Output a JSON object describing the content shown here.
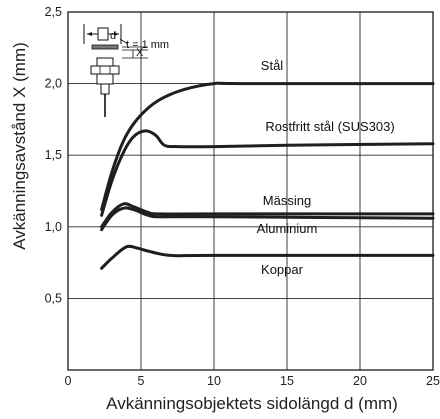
{
  "chart_data": {
    "type": "line",
    "xlabel": "Avkänningsobjektets sidolängd d (mm)",
    "ylabel": "Avkänningsavstånd X (mm)",
    "xlim": [
      0,
      25
    ],
    "ylim": [
      0,
      2.5
    ],
    "xticks": [
      "0",
      "5",
      "10",
      "15",
      "20",
      "25"
    ],
    "yticks": [
      "0,5",
      "1,0",
      "1,5",
      "2,0",
      "2,5"
    ],
    "grid": "vertical lines at x ticks, horizontal lines at 0.5 intervals",
    "inset": {
      "label_d": "d",
      "label_x": "X",
      "label_t": "t = 1 mm"
    },
    "series": [
      {
        "name": "Stål",
        "points": [
          [
            2.3,
            1.12
          ],
          [
            3,
            1.38
          ],
          [
            3.8,
            1.6
          ],
          [
            4.5,
            1.72
          ],
          [
            5.5,
            1.83
          ],
          [
            6.5,
            1.9
          ],
          [
            8,
            1.96
          ],
          [
            10,
            2.0
          ],
          [
            12,
            2.0
          ],
          [
            25,
            2.0
          ]
        ]
      },
      {
        "name": "Rostfritt stål (SUS303)",
        "points": [
          [
            2.3,
            1.08
          ],
          [
            3,
            1.32
          ],
          [
            3.8,
            1.52
          ],
          [
            4.5,
            1.63
          ],
          [
            5.3,
            1.67
          ],
          [
            6,
            1.64
          ],
          [
            6.6,
            1.57
          ],
          [
            7.5,
            1.56
          ],
          [
            10,
            1.56
          ],
          [
            15,
            1.57
          ],
          [
            25,
            1.58
          ]
        ]
      },
      {
        "name": "Mässing",
        "points": [
          [
            2.3,
            1.0
          ],
          [
            3,
            1.1
          ],
          [
            3.8,
            1.16
          ],
          [
            4.5,
            1.14
          ],
          [
            5.5,
            1.1
          ],
          [
            6.3,
            1.09
          ],
          [
            10,
            1.09
          ],
          [
            25,
            1.09
          ]
        ]
      },
      {
        "name": "Aluminium",
        "points": [
          [
            2.3,
            0.98
          ],
          [
            3,
            1.08
          ],
          [
            3.8,
            1.13
          ],
          [
            4.5,
            1.12
          ],
          [
            5.5,
            1.08
          ],
          [
            6.3,
            1.07
          ],
          [
            10,
            1.07
          ],
          [
            25,
            1.06
          ]
        ]
      },
      {
        "name": "Koppar",
        "points": [
          [
            2.3,
            0.71
          ],
          [
            3,
            0.78
          ],
          [
            4,
            0.86
          ],
          [
            4.8,
            0.85
          ],
          [
            5.5,
            0.83
          ],
          [
            7,
            0.8
          ],
          [
            10,
            0.8
          ],
          [
            25,
            0.8
          ]
        ]
      }
    ]
  }
}
